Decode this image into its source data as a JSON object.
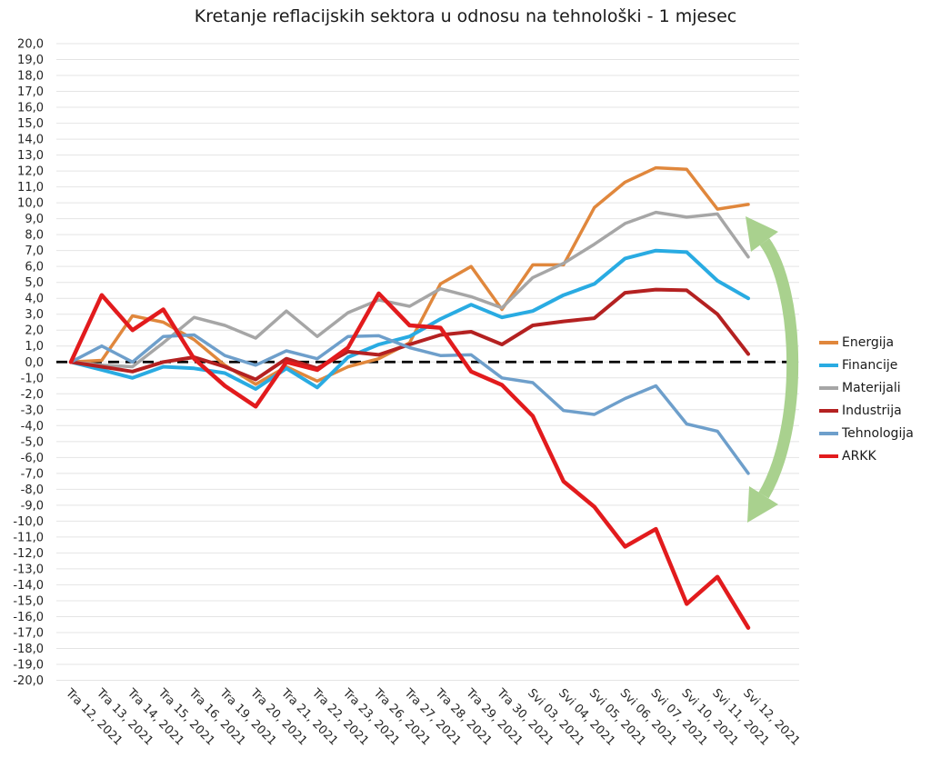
{
  "title": "Kretanje reflacijskih sektora u odnosu na tehnološki - 1 mjesec",
  "chart_data": {
    "type": "line",
    "title": "Kretanje reflacijskih sektora u odnosu na tehnološki - 1 mjesec",
    "categories": [
      "Tra 12, 2021",
      "Tra 13, 2021",
      "Tra 14, 2021",
      "Tra 15, 2021",
      "Tra 16, 2021",
      "Tra 19, 2021",
      "Tra 20, 2021",
      "Tra 21, 2021",
      "Tra 22, 2021",
      "Tra 23, 2021",
      "Tra 26, 2021",
      "Tra 27, 2021",
      "Tra 28, 2021",
      "Tra 29, 2021",
      "Tra 30, 2021",
      "Svi 03, 2021",
      "Svi 04, 2021",
      "Svi 05, 2021",
      "Svi 06, 2021",
      "Svi 07, 2021",
      "Svi 10, 2021",
      "Svi 11, 2021",
      "Svi 12, 2021"
    ],
    "series": [
      {
        "name": "Energija",
        "color": "#E0873C",
        "width": 3.5,
        "values": [
          0,
          0.1,
          2.9,
          2.5,
          1.4,
          -0.2,
          -1.4,
          -0.3,
          -1.2,
          -0.3,
          0.2,
          1.2,
          4.9,
          6.0,
          3.3,
          6.1,
          6.1,
          9.7,
          11.3,
          12.2,
          12.1,
          9.6,
          9.9
        ]
      },
      {
        "name": "Financije",
        "color": "#29ABE2",
        "width": 4,
        "values": [
          0,
          -0.5,
          -1.0,
          -0.3,
          -0.4,
          -0.7,
          -1.7,
          -0.4,
          -1.6,
          0.3,
          1.1,
          1.6,
          2.7,
          3.6,
          2.8,
          3.2,
          4.2,
          4.9,
          6.5,
          7.0,
          6.9,
          5.1,
          4.0
        ]
      },
      {
        "name": "Materijali",
        "color": "#A6A6A6",
        "width": 3.5,
        "values": [
          0,
          -0.2,
          -0.3,
          1.2,
          2.8,
          2.3,
          1.5,
          3.2,
          1.6,
          3.1,
          3.9,
          3.5,
          4.6,
          4.1,
          3.4,
          5.3,
          6.2,
          7.4,
          8.7,
          9.4,
          9.1,
          9.3,
          6.6
        ]
      },
      {
        "name": "Industrija",
        "color": "#B42121",
        "width": 4,
        "values": [
          0,
          -0.3,
          -0.6,
          0.0,
          0.3,
          -0.3,
          -1.1,
          0.2,
          -0.4,
          0.65,
          0.45,
          1.1,
          1.7,
          1.9,
          1.1,
          2.3,
          2.55,
          2.75,
          4.35,
          4.55,
          4.5,
          3.0,
          0.5
        ]
      },
      {
        "name": "Tehnologija",
        "color": "#6E9FCB",
        "width": 3.5,
        "values": [
          0,
          1.0,
          0.0,
          1.6,
          1.7,
          0.4,
          -0.2,
          0.7,
          0.2,
          1.6,
          1.65,
          0.9,
          0.4,
          0.45,
          -1.0,
          -1.3,
          -3.05,
          -3.3,
          -2.3,
          -1.5,
          -3.9,
          -4.35,
          -7.0
        ]
      },
      {
        "name": "ARKK",
        "color": "#E21B1D",
        "width": 4.5,
        "values": [
          0,
          4.2,
          2.0,
          3.3,
          0.2,
          -1.5,
          -2.8,
          0.0,
          -0.5,
          0.9,
          4.3,
          2.3,
          2.15,
          -0.6,
          -1.45,
          -3.4,
          -7.5,
          -9.1,
          -11.6,
          -10.5,
          -15.2,
          -13.5,
          -16.7
        ]
      }
    ],
    "xlabel": "",
    "ylabel": "",
    "ylim": [
      -20,
      20
    ],
    "ytick_step": 1.0,
    "ytick_format": "one-decimal-comma",
    "decimal_separator": ",",
    "grid": true,
    "grid_color": "#E4E4E4",
    "zero_line": {
      "style": "dashed",
      "color": "#000000"
    },
    "legend_position": "right",
    "annotation": {
      "type": "curved-double-arrow",
      "color": "#A9D18E"
    }
  }
}
